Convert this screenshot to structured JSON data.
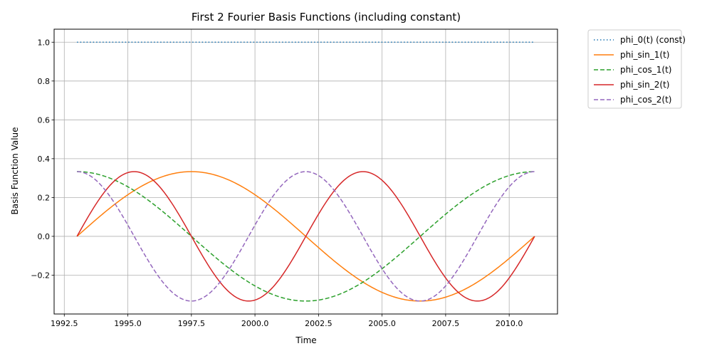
{
  "chart_data": {
    "type": "line",
    "title": "First 2 Fourier Basis Functions (including constant)",
    "xlabel": "Time",
    "ylabel": "Basis Function Value",
    "xlim": [
      1992.1,
      2011.9
    ],
    "ylim": [
      -0.4,
      1.067
    ],
    "x_range": [
      1993,
      2011
    ],
    "period": 18,
    "amplitude": 0.3333,
    "xticks": [
      1992.5,
      1995.0,
      1997.5,
      2000.0,
      2002.5,
      2005.0,
      2007.5,
      2010.0
    ],
    "xtick_labels": [
      "1992.5",
      "1995.0",
      "1997.5",
      "2000.0",
      "2002.5",
      "2005.0",
      "2007.5",
      "2010.0"
    ],
    "yticks": [
      -0.2,
      0.0,
      0.2,
      0.4,
      0.6,
      0.8,
      1.0
    ],
    "ytick_labels": [
      "−0.2",
      "0.0",
      "0.2",
      "0.4",
      "0.6",
      "0.8",
      "1.0"
    ],
    "grid": true,
    "legend_position": "outside-right-top",
    "series": [
      {
        "name": "phi_0(t) (const)",
        "kind": "const",
        "harmonic": 0,
        "color": "#1f77b4",
        "dash": "dotted"
      },
      {
        "name": "phi_sin_1(t)",
        "kind": "sin",
        "harmonic": 1,
        "color": "#ff7f0e",
        "dash": "solid"
      },
      {
        "name": "phi_cos_1(t)",
        "kind": "cos",
        "harmonic": 1,
        "color": "#2ca02c",
        "dash": "dashed"
      },
      {
        "name": "phi_sin_2(t)",
        "kind": "sin",
        "harmonic": 2,
        "color": "#d62728",
        "dash": "solid"
      },
      {
        "name": "phi_cos_2(t)",
        "kind": "cos",
        "harmonic": 2,
        "color": "#9467bd",
        "dash": "dashed"
      }
    ]
  }
}
